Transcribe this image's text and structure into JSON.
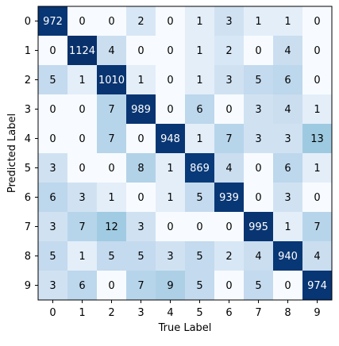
{
  "chart_data": {
    "type": "heatmap",
    "title": "",
    "xlabel": "True Label",
    "ylabel": "Predicted Label",
    "x_categories": [
      "0",
      "1",
      "2",
      "3",
      "4",
      "5",
      "6",
      "7",
      "8",
      "9"
    ],
    "y_categories": [
      "0",
      "1",
      "2",
      "3",
      "4",
      "5",
      "6",
      "7",
      "8",
      "9"
    ],
    "values": [
      [
        972,
        0,
        0,
        2,
        0,
        1,
        3,
        1,
        1,
        0
      ],
      [
        0,
        1124,
        4,
        0,
        0,
        1,
        2,
        0,
        4,
        0
      ],
      [
        5,
        1,
        1010,
        1,
        0,
        1,
        3,
        5,
        6,
        0
      ],
      [
        0,
        0,
        7,
        989,
        0,
        6,
        0,
        3,
        4,
        1
      ],
      [
        0,
        0,
        7,
        0,
        948,
        1,
        7,
        3,
        3,
        13
      ],
      [
        3,
        0,
        0,
        8,
        1,
        869,
        4,
        0,
        6,
        1
      ],
      [
        6,
        3,
        1,
        0,
        1,
        5,
        939,
        0,
        3,
        0
      ],
      [
        3,
        7,
        12,
        3,
        0,
        0,
        0,
        995,
        1,
        7
      ],
      [
        5,
        1,
        5,
        5,
        3,
        5,
        2,
        4,
        940,
        4
      ],
      [
        3,
        6,
        0,
        7,
        9,
        5,
        0,
        5,
        0,
        974
      ]
    ],
    "colormap": "Blues",
    "color_scale": "log",
    "grid": false,
    "legend": "none",
    "text_color_dark": "#000000",
    "text_color_light": "#ffffff"
  }
}
